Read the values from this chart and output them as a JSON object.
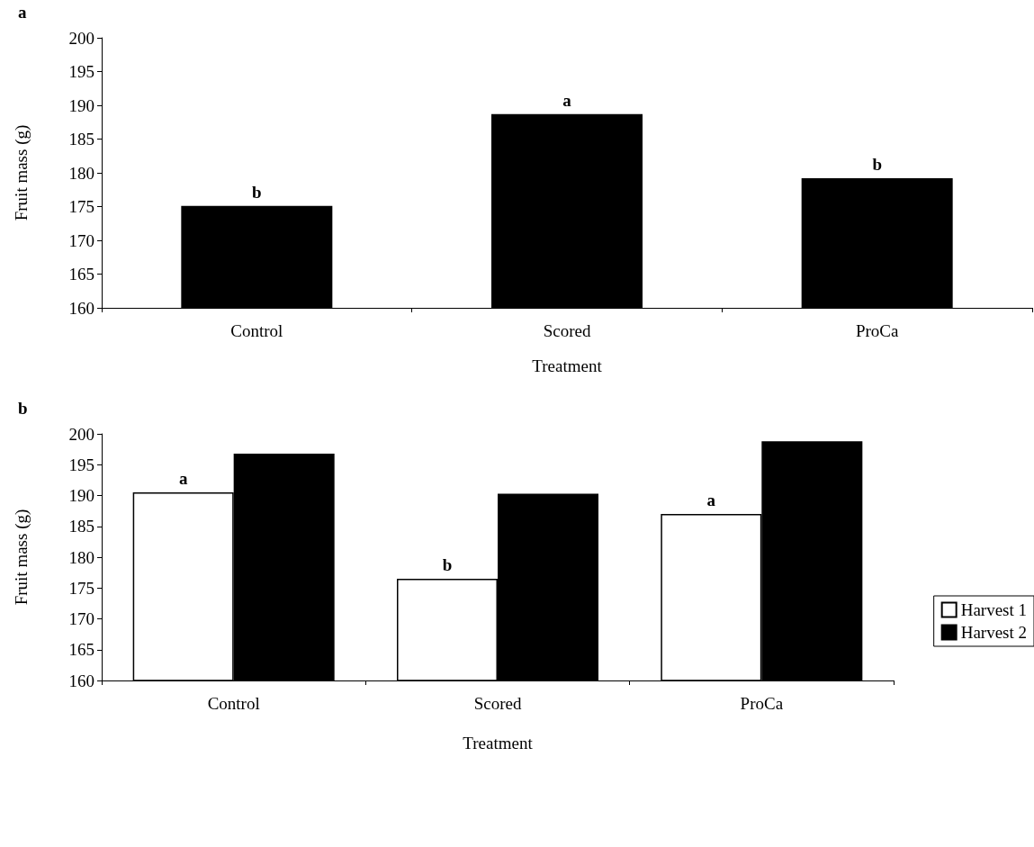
{
  "chart_data": [
    {
      "type": "bar",
      "xlabel": "Treatment",
      "ylabel": "Fruit mass (g)",
      "categories": [
        "Control",
        "Scored",
        "ProCa"
      ],
      "series": [
        {
          "color": "#000000",
          "values": [
            175.1,
            188.7,
            179.2
          ]
        }
      ],
      "ylim": [
        160,
        200
      ],
      "yticks": [
        160,
        165,
        170,
        175,
        180,
        185,
        190,
        195,
        200
      ],
      "grid": false,
      "legend": false,
      "annotations": [
        "a",
        {
          "text": "b",
          "x": "Control",
          "y": 175.1
        },
        {
          "text": "a",
          "x": "Scored",
          "y": 188.7
        },
        {
          "text": "b",
          "x": "ProCa",
          "y": 179.2
        }
      ]
    },
    {
      "type": "bar",
      "xlabel": "Treatment",
      "ylabel": "Fruit mass (g)",
      "categories": [
        "Control",
        "Scored",
        "ProCa"
      ],
      "series": [
        {
          "name": "Harvest 1",
          "color": "#ffffff",
          "values": [
            190.5,
            176.5,
            187.0
          ]
        },
        {
          "name": "Harvest 2",
          "color": "#000000",
          "values": [
            196.8,
            190.3,
            198.8
          ]
        }
      ],
      "ylim": [
        160,
        200
      ],
      "yticks": [
        160,
        165,
        170,
        175,
        180,
        185,
        190,
        195,
        200
      ],
      "grid": false,
      "legend": "right",
      "annotations": [
        "b",
        {
          "text": "a",
          "x": "Control",
          "y": 190.5
        },
        {
          "text": "b",
          "x": "Scored",
          "y": 176.5
        },
        {
          "text": "a",
          "x": "ProCa",
          "y": 187.0
        }
      ]
    }
  ]
}
